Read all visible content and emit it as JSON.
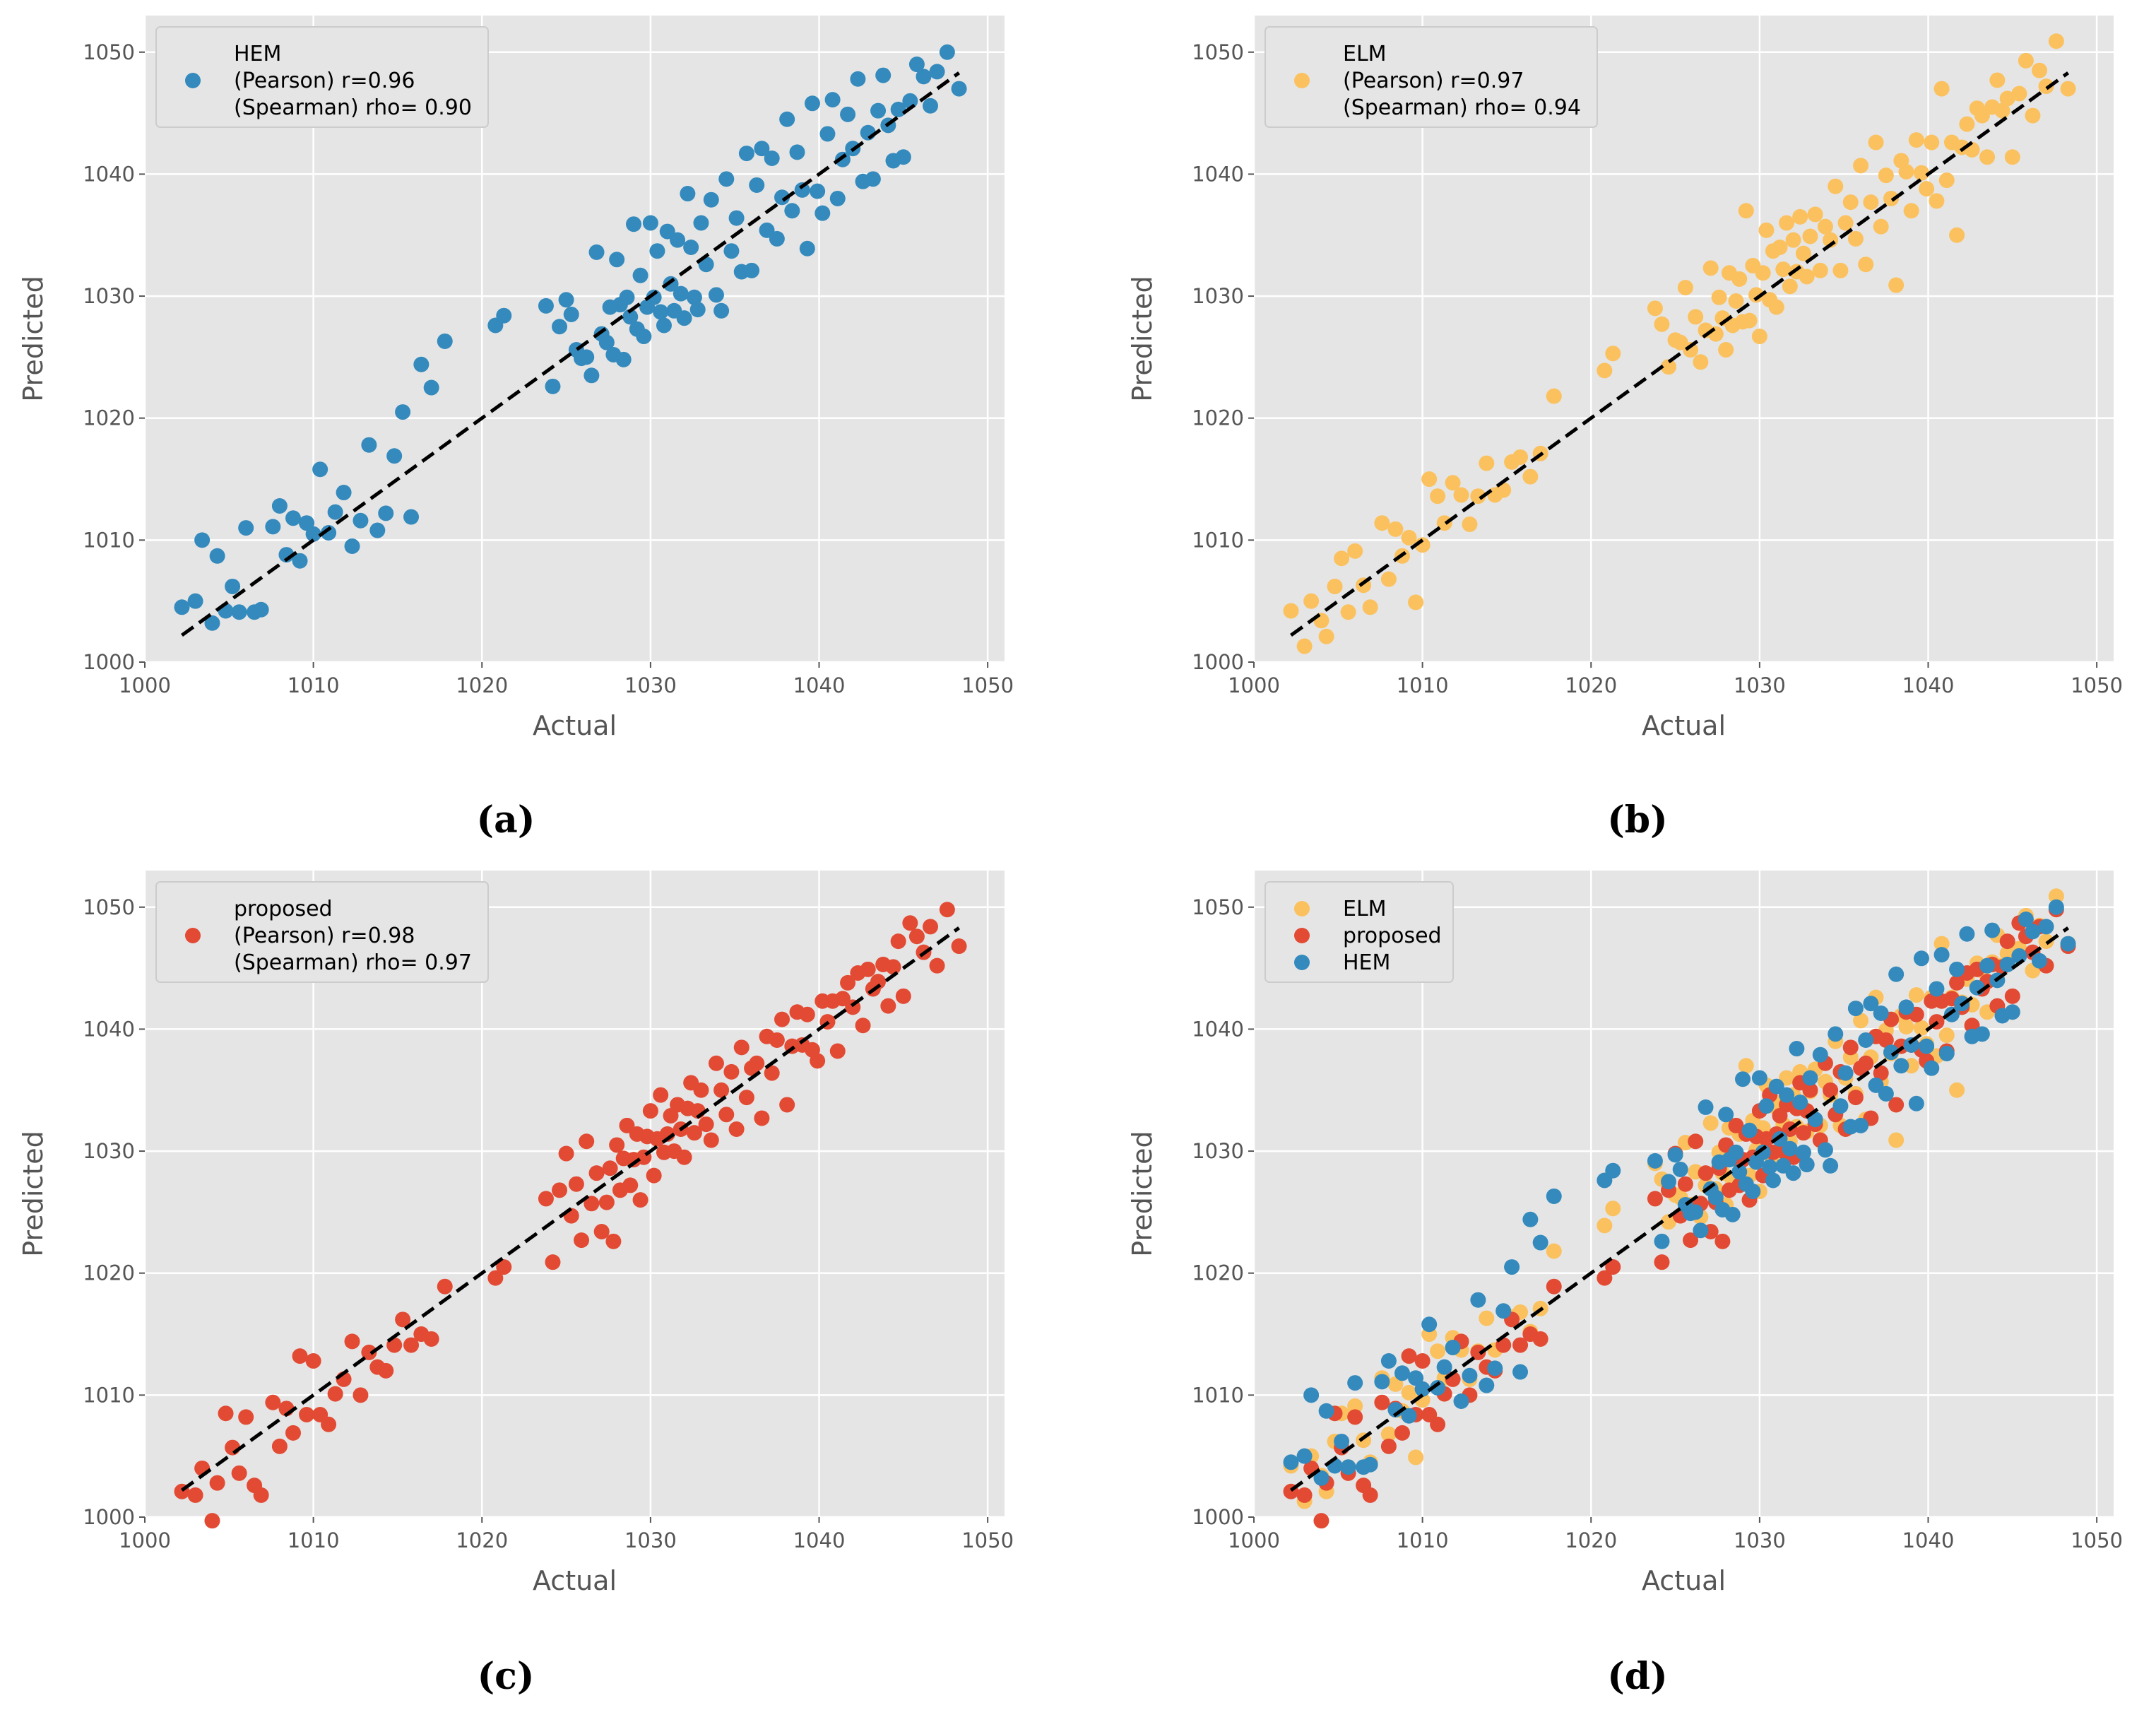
{
  "colors": {
    "panel_background": "#e5e5e5",
    "grid": "#ffffff",
    "HEM": "#348abd",
    "ELM": "#fbc15e",
    "proposed": "#e24a33",
    "fit_line": "#000000"
  },
  "chart_data": [
    {
      "type": "scatter",
      "caption": "(a)",
      "xlabel": "Actual",
      "ylabel": "Predicted",
      "xlim": [
        1000,
        1051
      ],
      "ylim": [
        1000,
        1053
      ],
      "xticks": [
        1000,
        1010,
        1020,
        1030,
        1040,
        1050
      ],
      "yticks": [
        1000,
        1010,
        1020,
        1030,
        1040,
        1050
      ],
      "grid": true,
      "legend_position": "upper-left",
      "legend": [
        {
          "series": "HEM",
          "lines": [
            "HEM",
            "(Pearson) r=0.96",
            "(Spearman) rho= 0.90"
          ]
        }
      ],
      "fit_line": {
        "style": "dashed",
        "x": [
          1002.2,
          1048.3
        ],
        "y": [
          1002.2,
          1048.3
        ]
      },
      "draw_order": [
        "HEM"
      ]
    },
    {
      "type": "scatter",
      "caption": "(b)",
      "xlabel": "Actual",
      "ylabel": "Predicted",
      "xlim": [
        1000,
        1051
      ],
      "ylim": [
        1000,
        1053
      ],
      "xticks": [
        1000,
        1010,
        1020,
        1030,
        1040,
        1050
      ],
      "yticks": [
        1000,
        1010,
        1020,
        1030,
        1040,
        1050
      ],
      "grid": true,
      "legend_position": "upper-left",
      "legend": [
        {
          "series": "ELM",
          "lines": [
            "ELM",
            "(Pearson) r=0.97",
            "(Spearman) rho= 0.94"
          ]
        }
      ],
      "fit_line": {
        "style": "dashed",
        "x": [
          1002.2,
          1048.3
        ],
        "y": [
          1002.2,
          1048.3
        ]
      },
      "draw_order": [
        "ELM"
      ]
    },
    {
      "type": "scatter",
      "caption": "(c)",
      "xlabel": "Actual",
      "ylabel": "Predicted",
      "xlim": [
        1000,
        1051
      ],
      "ylim": [
        1000,
        1053
      ],
      "xticks": [
        1000,
        1010,
        1020,
        1030,
        1040,
        1050
      ],
      "yticks": [
        1000,
        1010,
        1020,
        1030,
        1040,
        1050
      ],
      "grid": true,
      "legend_position": "upper-left",
      "legend": [
        {
          "series": "proposed",
          "lines": [
            "proposed",
            "(Pearson) r=0.98",
            "(Spearman) rho= 0.97"
          ]
        }
      ],
      "fit_line": {
        "style": "dashed",
        "x": [
          1002.2,
          1048.3
        ],
        "y": [
          1002.2,
          1048.3
        ]
      },
      "draw_order": [
        "proposed"
      ]
    },
    {
      "type": "scatter",
      "caption": "(d)",
      "xlabel": "Actual",
      "ylabel": "Predicted",
      "xlim": [
        1000,
        1051
      ],
      "ylim": [
        1000,
        1053
      ],
      "xticks": [
        1000,
        1010,
        1020,
        1030,
        1040,
        1050
      ],
      "yticks": [
        1000,
        1010,
        1020,
        1030,
        1040,
        1050
      ],
      "grid": true,
      "legend_position": "upper-left",
      "legend": [
        {
          "series": "ELM",
          "lines": [
            "ELM"
          ]
        },
        {
          "series": "proposed",
          "lines": [
            "proposed"
          ]
        },
        {
          "series": "HEM",
          "lines": [
            "HEM"
          ]
        }
      ],
      "fit_line": {
        "style": "dashed",
        "x": [
          1002.2,
          1048.3
        ],
        "y": [
          1002.2,
          1048.3
        ]
      },
      "draw_order": [
        "ELM",
        "proposed",
        "HEM"
      ]
    }
  ],
  "series_points": {
    "actual": [
      1002.2,
      1003.0,
      1003.4,
      1004.0,
      1004.3,
      1004.8,
      1005.2,
      1005.6,
      1006.0,
      1006.5,
      1006.9,
      1007.6,
      1008.0,
      1008.4,
      1008.8,
      1009.2,
      1009.6,
      1010.0,
      1010.4,
      1010.9,
      1011.3,
      1011.8,
      1012.3,
      1012.8,
      1013.3,
      1013.8,
      1014.3,
      1014.8,
      1015.3,
      1015.8,
      1016.4,
      1017.0,
      1017.8,
      1020.8,
      1021.3,
      1023.8,
      1024.2,
      1024.6,
      1025.0,
      1025.3,
      1025.6,
      1025.9,
      1026.2,
      1026.5,
      1026.8,
      1027.1,
      1027.4,
      1027.6,
      1027.8,
      1028.0,
      1028.2,
      1028.4,
      1028.6,
      1028.8,
      1029.0,
      1029.2,
      1029.4,
      1029.6,
      1029.8,
      1030.0,
      1030.2,
      1030.4,
      1030.6,
      1030.8,
      1031.0,
      1031.2,
      1031.4,
      1031.6,
      1031.8,
      1032.0,
      1032.2,
      1032.4,
      1032.6,
      1032.8,
      1033.0,
      1033.3,
      1033.6,
      1033.9,
      1034.2,
      1034.5,
      1034.8,
      1035.1,
      1035.4,
      1035.7,
      1036.0,
      1036.3,
      1036.6,
      1036.9,
      1037.2,
      1037.5,
      1037.8,
      1038.1,
      1038.4,
      1038.7,
      1039.0,
      1039.3,
      1039.6,
      1039.9,
      1040.2,
      1040.5,
      1040.8,
      1041.1,
      1041.4,
      1041.7,
      1042.0,
      1042.3,
      1042.6,
      1042.9,
      1043.2,
      1043.5,
      1043.8,
      1044.1,
      1044.4,
      1044.7,
      1045.0,
      1045.4,
      1045.8,
      1046.2,
      1046.6,
      1047.0,
      1047.6,
      1048.3
    ],
    "HEM_offsets": [
      2.3,
      2.0,
      6.6,
      -0.8,
      4.4,
      -0.6,
      1.0,
      -1.5,
      5.0,
      -2.4,
      -2.6,
      3.5,
      4.8,
      0.4,
      3.0,
      -0.9,
      1.8,
      0.5,
      5.4,
      -0.3,
      1.0,
      2.1,
      -2.8,
      -1.2,
      4.5,
      -3.0,
      -2.1,
      2.1,
      5.2,
      -3.9,
      8.0,
      5.5,
      8.5,
      6.8,
      7.1,
      5.4,
      -1.6,
      2.9,
      4.7,
      3.2,
      0.0,
      -1.0,
      -1.2,
      -3.0,
      6.8,
      -0.2,
      -1.2,
      1.5,
      -2.6,
      5.0,
      1.1,
      -3.6,
      1.3,
      -0.5,
      6.9,
      -1.9,
      2.3,
      -2.9,
      -0.7,
      6.0,
      -0.3,
      3.3,
      -1.9,
      -3.2,
      4.3,
      -0.2,
      -2.6,
      3.0,
      -1.6,
      -3.8,
      6.2,
      1.6,
      -2.7,
      -3.9,
      3.0,
      -0.7,
      4.3,
      -3.8,
      -5.4,
      5.1,
      -1.1,
      1.3,
      -3.4,
      6.0,
      -3.9,
      2.8,
      5.5,
      -1.5,
      4.1,
      -2.8,
      0.3,
      6.4,
      -1.4,
      3.1,
      -0.3,
      -5.4,
      6.2,
      -1.3,
      -3.4,
      2.8,
      5.3,
      -3.1,
      -0.2,
      3.2,
      0.1,
      5.5,
      -3.2,
      0.5,
      -3.6,
      1.7,
      4.3,
      -0.1,
      -3.3,
      0.6,
      -3.6,
      0.6,
      3.2,
      1.8,
      -1.0,
      1.4,
      2.4,
      -1.3
    ],
    "ELM_offsets": [
      2.0,
      -1.7,
      1.6,
      -0.6,
      -2.2,
      1.4,
      3.3,
      -1.5,
      3.1,
      -0.2,
      -2.4,
      3.8,
      -1.2,
      2.5,
      -0.1,
      1.0,
      -4.7,
      -0.4,
      4.6,
      2.7,
      0.1,
      2.9,
      1.4,
      -1.5,
      0.3,
      2.5,
      -0.6,
      -0.7,
      1.1,
      1.0,
      -1.2,
      0.1,
      4.0,
      3.1,
      4.0,
      5.2,
      3.5,
      -0.4,
      1.4,
      0.9,
      5.1,
      -0.3,
      2.1,
      -1.9,
      0.4,
      5.2,
      -0.5,
      2.3,
      0.4,
      -2.4,
      3.7,
      -0.8,
      1.0,
      2.6,
      -1.1,
      7.8,
      -1.4,
      2.9,
      0.3,
      -3.3,
      1.7,
      5.0,
      -0.9,
      2.9,
      -1.9,
      2.8,
      0.8,
      4.4,
      -1.0,
      2.6,
      -0.2,
      4.1,
      0.9,
      -1.2,
      1.9,
      3.4,
      -1.5,
      1.8,
      0.4,
      4.5,
      -2.7,
      0.9,
      2.3,
      -1.0,
      4.7,
      -3.7,
      1.1,
      5.7,
      -1.5,
      2.4,
      0.2,
      -7.2,
      2.7,
      1.5,
      -2.0,
      3.5,
      0.5,
      -1.1,
      2.4,
      -2.7,
      6.2,
      -1.6,
      1.2,
      -6.7,
      0.2,
      1.8,
      -0.6,
      2.5,
      1.6,
      -2.1,
      1.7,
      3.6,
      0.8,
      1.5,
      -3.6,
      1.2,
      3.5,
      -1.4,
      1.9,
      0.2,
      3.3,
      -1.3
    ],
    "proposed_offsets": [
      -0.1,
      -1.2,
      0.6,
      -4.3,
      -1.5,
      3.7,
      0.5,
      -2.0,
      2.2,
      -3.9,
      -5.1,
      1.8,
      -2.2,
      0.5,
      -1.9,
      4.0,
      -1.2,
      2.8,
      -2.0,
      -3.3,
      -1.2,
      -0.5,
      2.1,
      -2.8,
      0.2,
      -1.5,
      -2.3,
      -0.7,
      0.9,
      -1.7,
      -1.4,
      -2.4,
      1.1,
      -1.2,
      -0.8,
      2.3,
      -3.3,
      2.2,
      4.8,
      -0.6,
      1.7,
      -3.2,
      4.6,
      -0.8,
      1.4,
      -3.7,
      -1.6,
      1.0,
      -5.2,
      2.5,
      -1.4,
      1.0,
      3.5,
      -1.6,
      0.3,
      2.2,
      -3.4,
      -0.1,
      1.4,
      3.3,
      -2.2,
      0.6,
      4.0,
      -0.9,
      0.4,
      1.7,
      -1.4,
      2.2,
      0.0,
      -2.5,
      1.3,
      3.2,
      -1.1,
      0.5,
      2.0,
      -1.1,
      -2.7,
      3.3,
      0.8,
      -1.5,
      1.7,
      -3.3,
      3.1,
      -1.3,
      0.8,
      0.9,
      -3.9,
      2.5,
      -0.8,
      1.6,
      3.0,
      -4.3,
      0.2,
      2.7,
      -0.3,
      1.9,
      -1.3,
      -2.5,
      2.1,
      0.1,
      1.5,
      -2.9,
      1.1,
      2.1,
      -0.2,
      2.3,
      -2.3,
      2.0,
      0.1,
      0.4,
      1.5,
      -2.2,
      0.7,
      2.5,
      -2.3,
      3.3,
      1.8,
      0.1,
      1.8,
      -1.8,
      2.2,
      -1.5
    ]
  },
  "captions": [
    "(a)",
    "(b)",
    "(c)",
    "(d)"
  ]
}
